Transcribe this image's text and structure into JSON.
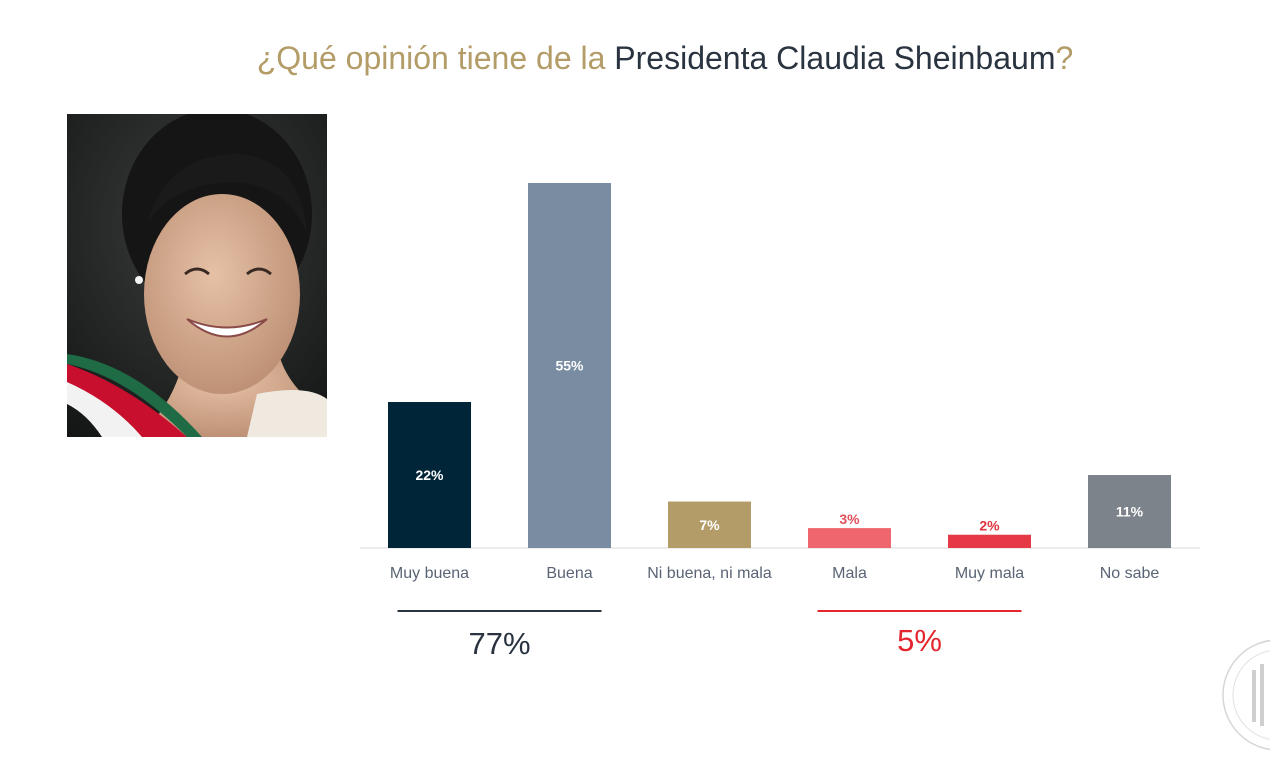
{
  "title": {
    "part1": "¿Qué opinión tiene de la ",
    "part2": "Presidenta Claudia Sheinbaum",
    "part3": "?"
  },
  "chart_data": {
    "type": "bar",
    "title": "¿Qué opinión tiene de la Presidenta Claudia Sheinbaum?",
    "categories": [
      "Muy buena",
      "Buena",
      "Ni buena, ni mala",
      "Mala",
      "Muy mala",
      "No sabe"
    ],
    "values": [
      22,
      55,
      7,
      3,
      2,
      11
    ],
    "value_labels": [
      "22%",
      "55%",
      "7%",
      "3%",
      "2%",
      "11%"
    ],
    "colors": [
      "#002538",
      "#798ca1",
      "#b39c67",
      "#f0666e",
      "#e63946",
      "#7d838a"
    ],
    "label_colors": [
      "#ffffff",
      "#ffffff",
      "#ffffff",
      "#e0525b",
      "#e0343f",
      "#ffffff"
    ],
    "label_inside": [
      true,
      true,
      true,
      false,
      false,
      true
    ],
    "ylim": [
      0,
      55
    ],
    "xlabel": "",
    "ylabel": "",
    "grid": false,
    "groups": [
      {
        "label": "77%",
        "from": 0,
        "to": 1,
        "color": "#2a3340"
      },
      {
        "label": "5%",
        "from": 3,
        "to": 4,
        "color": "#e3262e"
      }
    ]
  }
}
